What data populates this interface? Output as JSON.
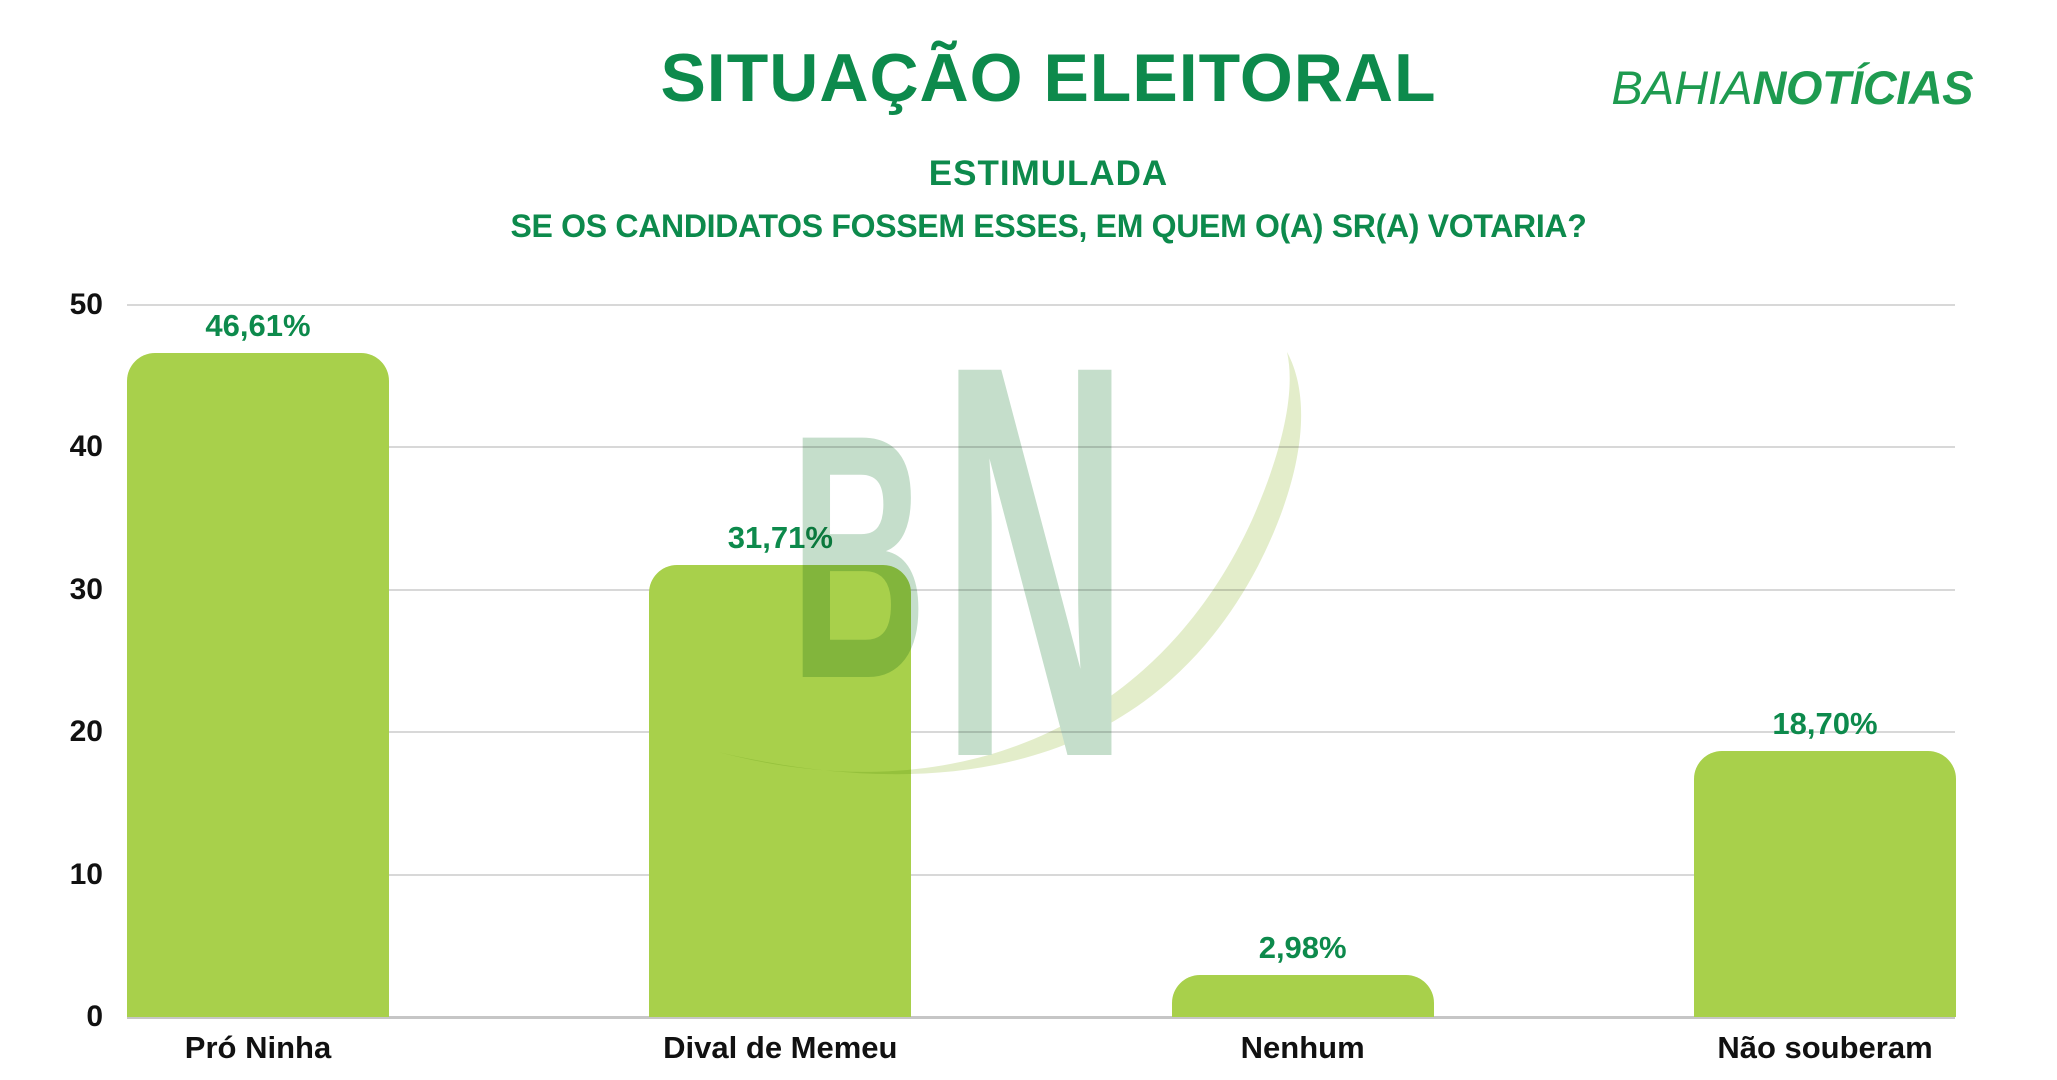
{
  "header": {
    "title": "SITUAÇÃO ELEITORAL",
    "subtitle": "ESTIMULADA",
    "question": "SE OS CANDIDATOS FOSSEM ESSES, EM QUEM O(A) SR(A) VOTARIA?"
  },
  "logo": {
    "part1": "BAHIA",
    "part2": "NOTÍCIAS"
  },
  "watermark": {
    "letter_b": "B",
    "letter_n": "N"
  },
  "theme": {
    "dark_green": "#0d8a4c",
    "logo_green": "#1e9b50",
    "bar_green": "#a8d04b",
    "watermark_green": "#c5decb",
    "swoosh_cream": "#e3edca",
    "gridline": "#d8d8d8",
    "axis": "#c6c6c6",
    "text_black": "#111111"
  },
  "chart_data": {
    "type": "bar",
    "categories": [
      "Pró Ninha",
      "Dival de Memeu",
      "Nenhum",
      "Não souberam"
    ],
    "values": [
      46.61,
      31.71,
      2.98,
      18.7
    ],
    "value_labels": [
      "46,61%",
      "31,71%",
      "2,98%",
      "18,70%"
    ],
    "y_ticks": [
      0,
      10,
      20,
      30,
      40,
      50
    ],
    "ylim": [
      0,
      50
    ],
    "grid": true,
    "legend": "none",
    "title": "SITUAÇÃO ELEITORAL — ESTIMULADA",
    "xlabel": "",
    "ylabel": ""
  }
}
